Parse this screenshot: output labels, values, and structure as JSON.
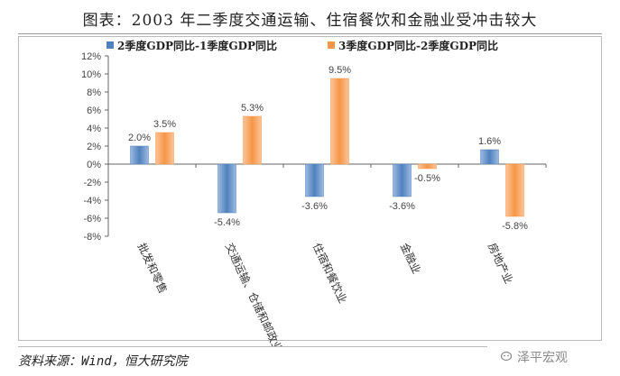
{
  "title": "图表：2003 年二季度交通运输、住宿餐饮和金融业受冲击较大",
  "source": "资料来源：Wind，恒大研究院",
  "watermark": "泽平宏观",
  "chart_data": {
    "type": "bar",
    "categories": [
      "批发和零售",
      "交通运输、仓储和邮政业",
      "住宿和餐饮业",
      "金融业",
      "房地产业"
    ],
    "series": [
      {
        "name": "2季度GDP同比-1季度GDP同比",
        "values": [
          2.0,
          -5.4,
          -3.6,
          -3.6,
          1.6
        ],
        "labels": [
          "2.0%",
          "-5.4%",
          "-3.6%",
          "-3.6%",
          "1.6%"
        ],
        "color": "#4f81bd"
      },
      {
        "name": "3季度GDP同比-2季度GDP同比",
        "values": [
          3.5,
          5.3,
          9.5,
          -0.5,
          -5.8
        ],
        "labels": [
          "3.5%",
          "5.3%",
          "9.5%",
          "-0.5%",
          "-5.8%"
        ],
        "color": "#f79646"
      }
    ],
    "ylim": [
      -8,
      12
    ],
    "yticks": [
      -8,
      -6,
      -4,
      -2,
      0,
      2,
      4,
      6,
      8,
      10,
      12
    ],
    "ytick_labels": [
      "-8%",
      "-6%",
      "-4%",
      "-2%",
      "0%",
      "2%",
      "4%",
      "6%",
      "8%",
      "10%",
      "12%"
    ],
    "legend_position": "top",
    "grid": false
  }
}
